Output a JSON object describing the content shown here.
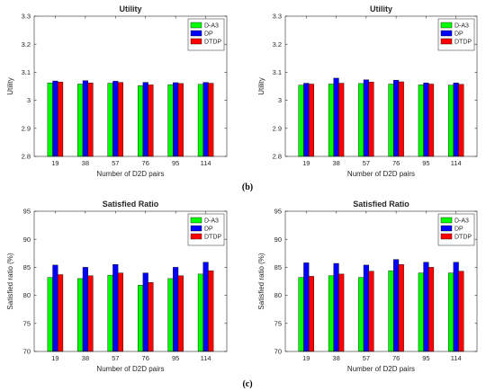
{
  "captions": [
    "(b)",
    "(c)"
  ],
  "chart_data": [
    {
      "type": "bar",
      "title": "Utility",
      "xlabel": "Number of D2D pairs",
      "ylabel": "Utility",
      "categories": [
        "19",
        "38",
        "57",
        "76",
        "95",
        "114"
      ],
      "ylim": [
        2.8,
        3.3
      ],
      "yticks": [
        "2.8",
        "2.9",
        "3",
        "3.1",
        "3.2",
        "3.3"
      ],
      "legend_position": "top-right",
      "grid": false,
      "series": [
        {
          "name": "D-A3",
          "color": "#00ff00",
          "values": [
            3.062,
            3.058,
            3.061,
            3.052,
            3.056,
            3.057
          ]
        },
        {
          "name": "DP",
          "color": "#0000ff",
          "values": [
            3.069,
            3.07,
            3.068,
            3.064,
            3.063,
            3.064
          ]
        },
        {
          "name": "DTDP",
          "color": "#ff0000",
          "values": [
            3.065,
            3.062,
            3.064,
            3.055,
            3.06,
            3.061
          ]
        }
      ]
    },
    {
      "type": "bar",
      "title": "Utility",
      "xlabel": "Number of D2D pairs",
      "ylabel": "Utility",
      "categories": [
        "19",
        "38",
        "57",
        "76",
        "95",
        "114"
      ],
      "ylim": [
        2.8,
        3.3
      ],
      "yticks": [
        "2.8",
        "2.9",
        "3",
        "3.1",
        "3.2",
        "3.3"
      ],
      "legend_position": "top-right",
      "grid": false,
      "series": [
        {
          "name": "D-A3",
          "color": "#00ff00",
          "values": [
            3.054,
            3.058,
            3.06,
            3.058,
            3.055,
            3.054
          ]
        },
        {
          "name": "DP",
          "color": "#0000ff",
          "values": [
            3.061,
            3.079,
            3.073,
            3.072,
            3.062,
            3.062
          ]
        },
        {
          "name": "DTDP",
          "color": "#ff0000",
          "values": [
            3.058,
            3.061,
            3.065,
            3.066,
            3.058,
            3.057
          ]
        }
      ]
    },
    {
      "type": "bar",
      "title": "Satisfied Ratio",
      "xlabel": "Number of D2D pairs",
      "ylabel": "Satisfied ratio (%)",
      "categories": [
        "19",
        "38",
        "57",
        "76",
        "95",
        "114"
      ],
      "ylim": [
        70,
        95
      ],
      "yticks": [
        "70",
        "75",
        "80",
        "85",
        "90",
        "95"
      ],
      "legend_position": "top-right",
      "grid": false,
      "series": [
        {
          "name": "D-A3",
          "color": "#00ff00",
          "values": [
            83.2,
            83.0,
            83.6,
            81.8,
            83.0,
            83.8
          ]
        },
        {
          "name": "DP",
          "color": "#0000ff",
          "values": [
            85.4,
            85.0,
            85.5,
            84.0,
            85.0,
            85.9
          ]
        },
        {
          "name": "DTDP",
          "color": "#ff0000",
          "values": [
            83.7,
            83.5,
            84.0,
            82.3,
            83.5,
            84.4
          ]
        }
      ]
    },
    {
      "type": "bar",
      "title": "Satisfied Ratio",
      "xlabel": "Number of D2D pairs",
      "ylabel": "Satisfied ratio (%)",
      "categories": [
        "19",
        "38",
        "57",
        "76",
        "95",
        "114"
      ],
      "ylim": [
        70,
        95
      ],
      "yticks": [
        "70",
        "75",
        "80",
        "85",
        "90",
        "95"
      ],
      "legend_position": "top-right",
      "grid": false,
      "series": [
        {
          "name": "D-A3",
          "color": "#00ff00",
          "values": [
            83.2,
            83.5,
            83.2,
            84.4,
            84.0,
            84.0
          ]
        },
        {
          "name": "DP",
          "color": "#0000ff",
          "values": [
            85.8,
            85.7,
            85.4,
            86.4,
            85.9,
            85.9
          ]
        },
        {
          "name": "DTDP",
          "color": "#ff0000",
          "values": [
            83.4,
            83.8,
            84.3,
            85.5,
            85.0,
            84.3
          ]
        }
      ]
    }
  ]
}
